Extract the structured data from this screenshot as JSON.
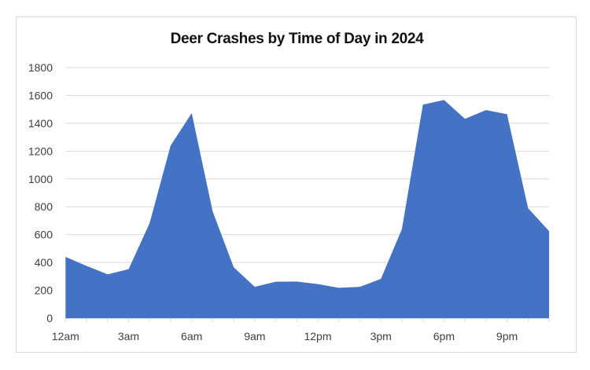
{
  "chart_data": {
    "type": "area",
    "title": "Deer Crashes by Time of Day in 2024",
    "xlabel": "",
    "ylabel": "",
    "ylim": [
      0,
      1800
    ],
    "yticks": [
      0,
      200,
      400,
      600,
      800,
      1000,
      1200,
      1400,
      1600,
      1800
    ],
    "x": [
      "12am",
      "1am",
      "2am",
      "3am",
      "4am",
      "5am",
      "6am",
      "7am",
      "8am",
      "9am",
      "10am",
      "11am",
      "12pm",
      "1pm",
      "2pm",
      "3pm",
      "4pm",
      "5pm",
      "6pm",
      "7pm",
      "8pm",
      "9pm",
      "10pm",
      "11pm"
    ],
    "xtick_labels": [
      {
        "index": 0,
        "label": "12am"
      },
      {
        "index": 3,
        "label": "3am"
      },
      {
        "index": 6,
        "label": "6am"
      },
      {
        "index": 9,
        "label": "9am"
      },
      {
        "index": 12,
        "label": "12pm"
      },
      {
        "index": 15,
        "label": "3pm"
      },
      {
        "index": 18,
        "label": "6pm"
      },
      {
        "index": 21,
        "label": "9pm"
      }
    ],
    "series": [
      {
        "name": "Deer Crashes",
        "color": "#4472C4",
        "values": [
          440,
          375,
          315,
          352,
          683,
          1240,
          1473,
          765,
          365,
          225,
          262,
          263,
          245,
          218,
          225,
          282,
          640,
          1533,
          1567,
          1432,
          1495,
          1465,
          790,
          625
        ]
      }
    ],
    "grid": true,
    "legend": "none"
  },
  "colors": {
    "area_fill": "#4472C4",
    "gridline": "#d9d9d9",
    "axis_text": "#404040",
    "title_text": "#111111"
  }
}
